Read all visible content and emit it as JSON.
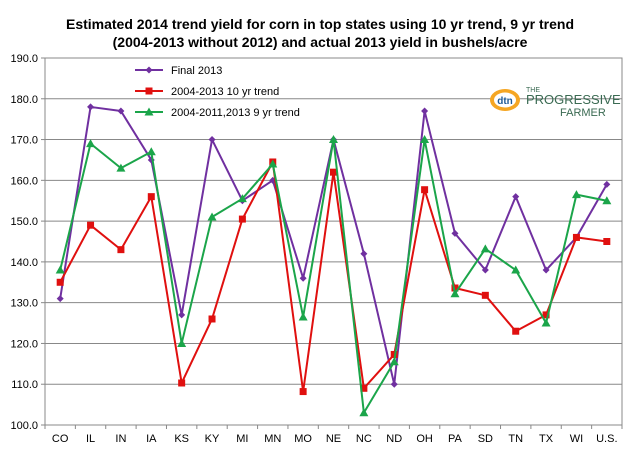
{
  "chart_data": {
    "type": "line",
    "title_line1": "Estimated 2014 trend yield for corn in top states using 10 yr trend, 9 yr trend",
    "title_line2": "(2004-2013 without 2012) and actual 2013 yield in bushels/acre",
    "categories": [
      "CO",
      "IL",
      "IN",
      "IA",
      "KS",
      "KY",
      "MI",
      "MN",
      "MO",
      "NE",
      "NC",
      "ND",
      "OH",
      "PA",
      "SD",
      "TN",
      "TX",
      "WI",
      "U.S."
    ],
    "ylim": [
      100,
      190
    ],
    "yticks": [
      "100.0",
      "110.0",
      "120.0",
      "130.0",
      "140.0",
      "150.0",
      "160.0",
      "170.0",
      "180.0",
      "190.0"
    ],
    "grid": true,
    "legend_position": "top-left",
    "series": [
      {
        "name": "Final 2013",
        "color": "#7030A0",
        "marker": "diamond",
        "values": [
          131,
          178,
          177,
          165,
          127,
          170,
          155,
          160,
          136,
          170,
          142,
          110,
          177,
          147,
          138,
          156,
          138,
          146,
          159
        ]
      },
      {
        "name": "2004-2013  10 yr trend",
        "color": "#E0100F",
        "marker": "square",
        "values": [
          135,
          149,
          143,
          156,
          110.3,
          126,
          150.5,
          164.5,
          108.2,
          162,
          109,
          117.3,
          157.7,
          133.6,
          131.8,
          123,
          127,
          146,
          145
        ]
      },
      {
        "name": "2004-2011,2013   9 yr trend",
        "color": "#1BA54A",
        "marker": "triangle",
        "values": [
          138,
          169,
          163,
          167,
          120,
          151,
          155.5,
          164,
          126.5,
          170,
          103,
          115.5,
          170,
          132.2,
          143.2,
          138,
          125,
          156.5,
          155
        ]
      }
    ]
  },
  "logo": {
    "badge_text": "dtn",
    "line1": "THE",
    "line2": "PROGRESSIVE",
    "line3": "FARMER"
  }
}
